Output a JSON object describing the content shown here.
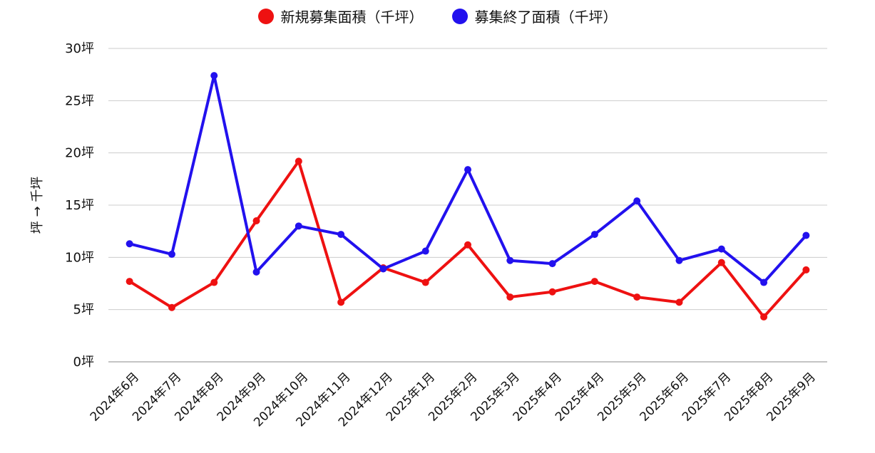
{
  "chart_data": {
    "type": "line",
    "title": "",
    "xlabel": "",
    "ylabel": "坪 → 千坪",
    "ylim": [
      0,
      30
    ],
    "yticks": [
      "0坪",
      "5坪",
      "10坪",
      "15坪",
      "20坪",
      "25坪",
      "30坪"
    ],
    "ytick_values": [
      0,
      5,
      10,
      15,
      20,
      25,
      30
    ],
    "grid": true,
    "legend_position": "top",
    "categories": [
      "2024年6月",
      "2024年7月",
      "2024年8月",
      "2024年9月",
      "2024年10月",
      "2024年11月",
      "2024年12月",
      "2025年1月",
      "2025年2月",
      "2025年3月",
      "2025年4月",
      "2025年4月",
      "2025年5月",
      "2025年6月",
      "2025年7月",
      "2025年8月",
      "2025年9月"
    ],
    "series": [
      {
        "name": "新規募集面積（千坪）",
        "color": "#ee1111",
        "values": [
          7.7,
          5.2,
          7.6,
          13.5,
          19.2,
          5.7,
          9.0,
          7.6,
          11.2,
          6.2,
          6.7,
          7.7,
          6.2,
          5.7,
          9.5,
          4.3,
          8.8
        ]
      },
      {
        "name": "募集終了面積（千坪）",
        "color": "#2211ee",
        "values": [
          11.3,
          10.3,
          27.4,
          8.6,
          13.0,
          12.2,
          8.9,
          10.6,
          18.4,
          9.7,
          9.4,
          12.2,
          15.4,
          9.7,
          10.8,
          7.6,
          12.1
        ]
      }
    ]
  }
}
